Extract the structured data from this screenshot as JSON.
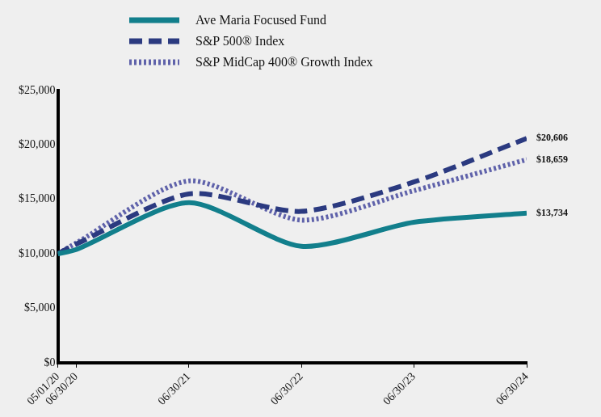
{
  "chart_data": {
    "type": "line",
    "x": [
      "05/01/20",
      "06/30/20",
      "06/30/21",
      "06/30/22",
      "06/30/23",
      "06/30/24"
    ],
    "xlim": [
      "05/01/20",
      "06/30/24"
    ],
    "series": [
      {
        "name": "Ave Maria Focused Fund",
        "color": "#127f8c",
        "line_style": "solid",
        "values": [
          10000,
          10400,
          14700,
          10700,
          12900,
          13734
        ],
        "value_labels": [
          null,
          null,
          null,
          null,
          null,
          "$13,734"
        ]
      },
      {
        "name": "S&P 500® Index",
        "color": "#2b3a80",
        "line_style": "dashed",
        "values": [
          10000,
          10900,
          15500,
          13900,
          16600,
          20606
        ],
        "value_labels": [
          null,
          null,
          null,
          null,
          null,
          "$20,606"
        ]
      },
      {
        "name": "S&P MidCap 400® Growth Index",
        "color": "#5f62aa",
        "line_style": "dotted",
        "values": [
          10000,
          11000,
          16700,
          13100,
          15800,
          18659
        ],
        "value_labels": [
          null,
          null,
          null,
          null,
          null,
          "$18,659"
        ]
      }
    ],
    "ylim": [
      0,
      25000
    ],
    "yticks": [
      {
        "value": 0,
        "label": "$0"
      },
      {
        "value": 5000,
        "label": "$5,000"
      },
      {
        "value": 10000,
        "label": "$10,000"
      },
      {
        "value": 15000,
        "label": "$15,000"
      },
      {
        "value": 20000,
        "label": "$20,000"
      },
      {
        "value": 25000,
        "label": "$25,000"
      }
    ],
    "grid": false,
    "legend": "top-left",
    "data_labels": true
  }
}
